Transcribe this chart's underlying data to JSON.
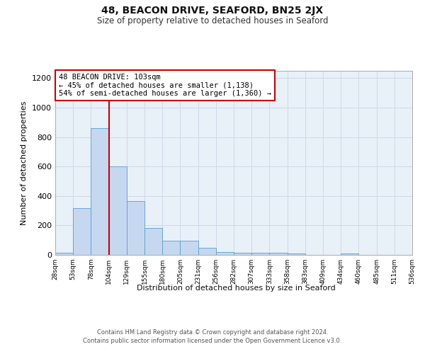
{
  "title": "48, BEACON DRIVE, SEAFORD, BN25 2JX",
  "subtitle": "Size of property relative to detached houses in Seaford",
  "xlabel": "Distribution of detached houses by size in Seaford",
  "ylabel": "Number of detached properties",
  "bar_values": [
    13,
    318,
    860,
    600,
    365,
    185,
    97,
    97,
    46,
    20,
    15,
    15,
    15,
    10,
    0,
    0,
    8,
    0,
    0,
    0
  ],
  "bin_labels": [
    "28sqm",
    "53sqm",
    "78sqm",
    "104sqm",
    "129sqm",
    "155sqm",
    "180sqm",
    "205sqm",
    "231sqm",
    "256sqm",
    "282sqm",
    "307sqm",
    "333sqm",
    "358sqm",
    "383sqm",
    "409sqm",
    "434sqm",
    "460sqm",
    "485sqm",
    "511sqm",
    "536sqm"
  ],
  "bar_color": "#c5d8f0",
  "bar_edge_color": "#5a9ec9",
  "grid_color": "#d0d8e8",
  "bg_color": "#e8f0f8",
  "annotation_text_line1": "48 BEACON DRIVE: 103sqm",
  "annotation_text_line2": "← 45% of detached houses are smaller (1,138)",
  "annotation_text_line3": "54% of semi-detached houses are larger (1,360) →",
  "annotation_box_color": "#ffffff",
  "annotation_box_edge": "#cc0000",
  "red_line_color": "#cc0000",
  "red_line_x": 3,
  "ylim": [
    0,
    1250
  ],
  "yticks": [
    0,
    200,
    400,
    600,
    800,
    1000,
    1200
  ],
  "footer_line1": "Contains HM Land Registry data © Crown copyright and database right 2024.",
  "footer_line2": "Contains public sector information licensed under the Open Government Licence v3.0."
}
